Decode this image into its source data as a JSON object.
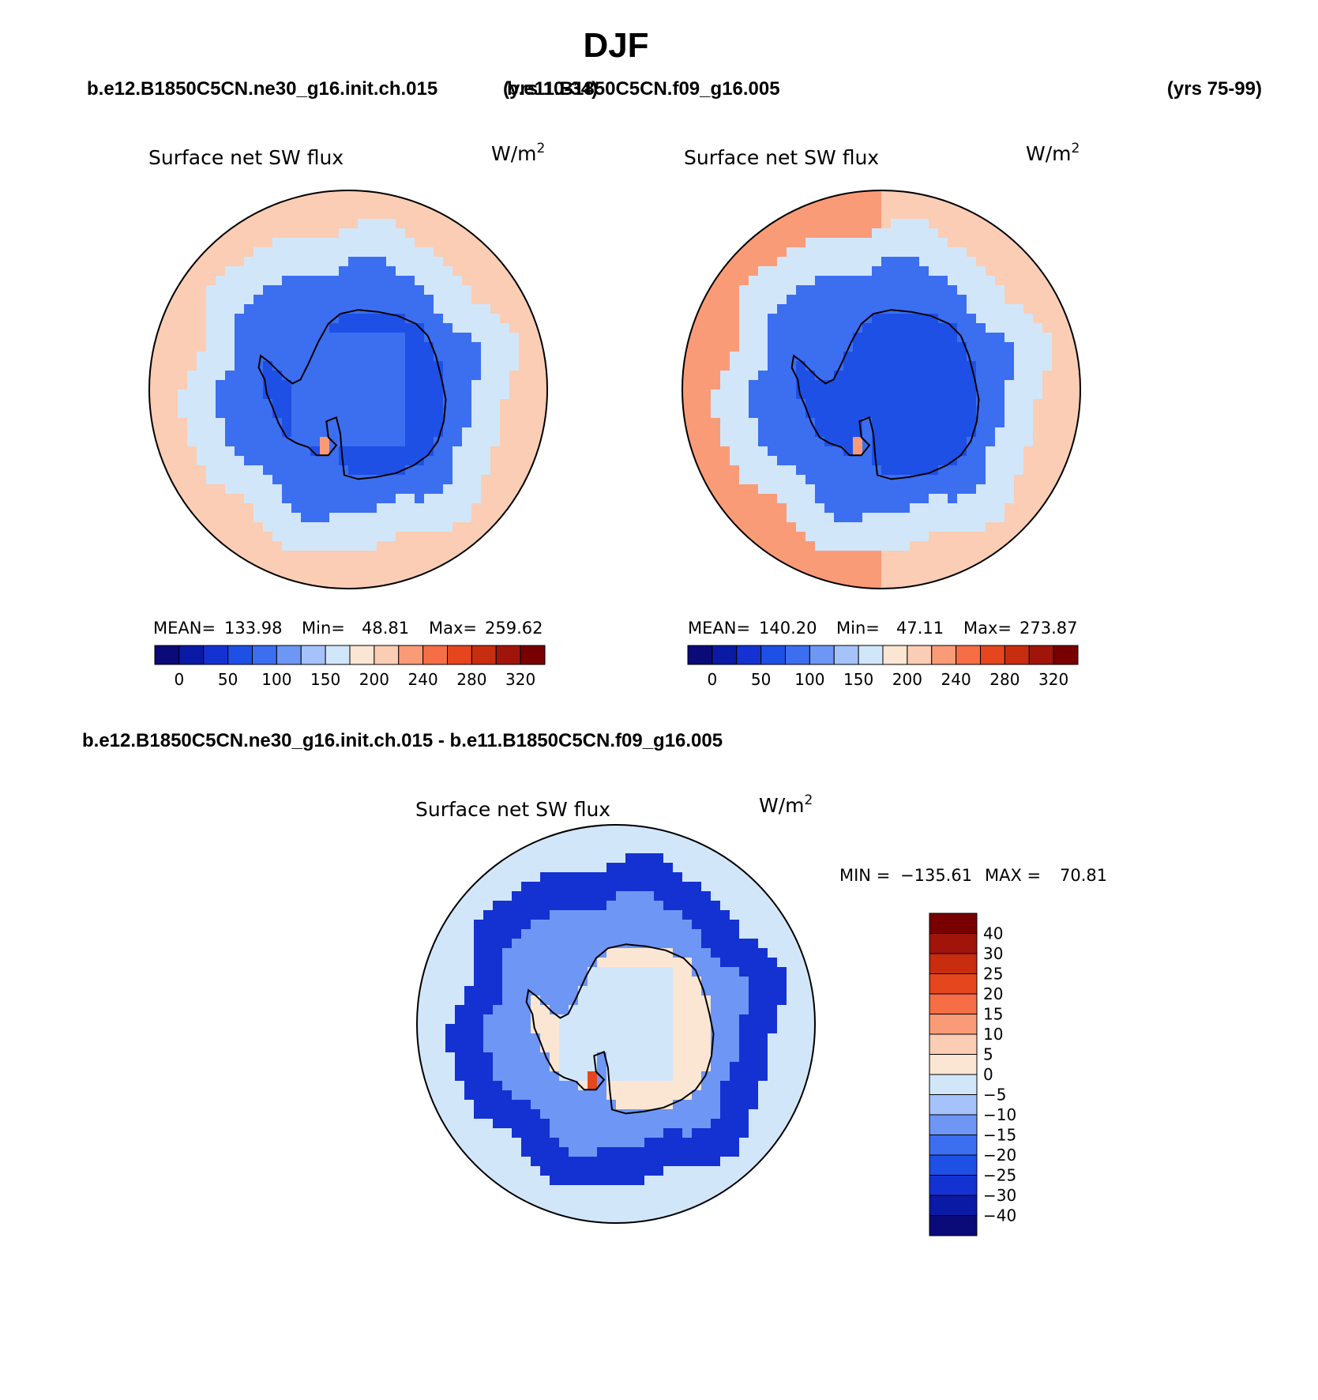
{
  "figure": {
    "title": "DJF",
    "case_label": "b.e12.B1850C5CN.ne30_g16.init.ch.015",
    "case_years": "(yrs 10-34)",
    "control_label": "b.e11.B1850C5CN.f09_g16.005",
    "control_years": "(yrs 75-99)",
    "diff_label": "b.e12.B1850C5CN.ne30_g16.init.ch.015 - b.e11.B1850C5CN.f09_g16.005"
  },
  "chart_data": [
    {
      "type": "heatmap",
      "projection": "south-polar-stereographic",
      "title": "Surface net SW flux",
      "units": "W/m",
      "units_exponent": "2",
      "stats": {
        "mean_label": "MEAN=",
        "mean": "133.98",
        "min_label": "Min=",
        "min": "48.81",
        "max_label": "Max=",
        "max": "259.62"
      },
      "levels": [
        0,
        25,
        50,
        75,
        100,
        125,
        150,
        175,
        200,
        220,
        240,
        260,
        280,
        300,
        320
      ],
      "colorbar_labels": [
        "0",
        "50",
        "100",
        "150",
        "200",
        "240",
        "280",
        "320"
      ],
      "colors": [
        "#0a0a78",
        "#0a1aa5",
        "#1432d2",
        "#1e50e6",
        "#3c6ef0",
        "#6e96f5",
        "#a5c3fa",
        "#d2e6fa",
        "#fae6d2",
        "#facdb4",
        "#fa9b78",
        "#f56e46",
        "#e6461e",
        "#c82d0f",
        "#a0140a",
        "#780000"
      ],
      "field": {
        "ocean_far": 215,
        "ocean_far_east": 205,
        "ice_edge": 150,
        "sea_ice": 85,
        "continent": 62,
        "plateau_high": 75,
        "peninsula_patch": 230
      }
    },
    {
      "type": "heatmap",
      "projection": "south-polar-stereographic",
      "title": "Surface net SW flux",
      "units": "W/m",
      "units_exponent": "2",
      "stats": {
        "mean_label": "MEAN=",
        "mean": "140.20",
        "min_label": "Min=",
        "min": "47.11",
        "max_label": "Max=",
        "max": "273.87"
      },
      "levels": [
        0,
        25,
        50,
        75,
        100,
        125,
        150,
        175,
        200,
        220,
        240,
        260,
        280,
        300,
        320
      ],
      "colorbar_labels": [
        "0",
        "50",
        "100",
        "150",
        "200",
        "240",
        "280",
        "320"
      ],
      "colors": [
        "#0a0a78",
        "#0a1aa5",
        "#1432d2",
        "#1e50e6",
        "#3c6ef0",
        "#6e96f5",
        "#a5c3fa",
        "#d2e6fa",
        "#fae6d2",
        "#facdb4",
        "#fa9b78",
        "#f56e46",
        "#e6461e",
        "#c82d0f",
        "#a0140a",
        "#780000"
      ],
      "field": {
        "ocean_far": 222,
        "ocean_far_east": 215,
        "ice_edge": 155,
        "sea_ice": 80,
        "continent": 58,
        "plateau_high": 70,
        "peninsula_patch": 235
      }
    },
    {
      "type": "heatmap",
      "projection": "south-polar-stereographic",
      "title": "Surface net SW flux",
      "units": "W/m",
      "units_exponent": "2",
      "stats": {
        "min_label": "MIN =",
        "min": "−135.61",
        "max_label": "MAX =",
        "max": "70.81"
      },
      "levels": [
        -40,
        -30,
        -25,
        -20,
        -15,
        -10,
        -5,
        0,
        5,
        10,
        15,
        20,
        25,
        30,
        40
      ],
      "colorbar_labels": [
        "40",
        "30",
        "25",
        "20",
        "15",
        "10",
        "5",
        "0",
        "−5",
        "−10",
        "−15",
        "−20",
        "−25",
        "−30",
        "−40"
      ],
      "colors": [
        "#0a0a78",
        "#0a1aa5",
        "#1432d2",
        "#1e50e6",
        "#3c6ef0",
        "#6e96f5",
        "#a5c3fa",
        "#d2e6fa",
        "#fae6d2",
        "#facdb4",
        "#fa9b78",
        "#f56e46",
        "#e6461e",
        "#c82d0f",
        "#a0140a",
        "#780000"
      ],
      "field": {
        "ocean_far": -3,
        "ocean_far_east": -2,
        "ice_edge": -28,
        "sea_ice": -12,
        "continent": 3,
        "plateau_high": -2,
        "peninsula_patch": 22
      }
    }
  ]
}
